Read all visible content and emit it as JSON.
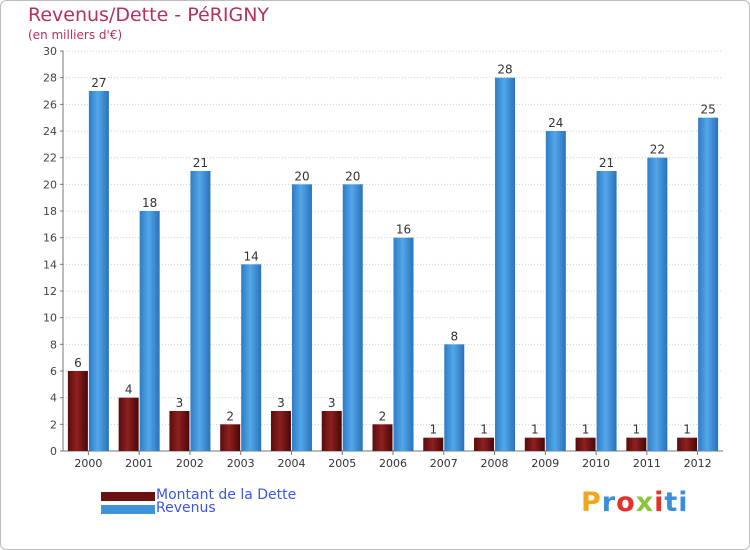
{
  "chart_data": {
    "type": "bar",
    "title": "Revenus/Dette - PéRIGNY",
    "subtitle": "(en milliers d'€)",
    "categories": [
      "2000",
      "2001",
      "2002",
      "2003",
      "2004",
      "2005",
      "2006",
      "2007",
      "2008",
      "2009",
      "2010",
      "2011",
      "2012"
    ],
    "series": [
      {
        "name": "Montant de la Dette",
        "color": "#7a1515",
        "values": [
          6,
          4,
          3,
          2,
          3,
          3,
          2,
          1,
          1,
          1,
          1,
          1,
          1
        ]
      },
      {
        "name": "Revenus",
        "color": "#3d94db",
        "values": [
          27,
          18,
          21,
          14,
          20,
          20,
          16,
          8,
          28,
          24,
          21,
          22,
          25
        ]
      }
    ],
    "yticks": [
      "0",
      "2",
      "4",
      "6",
      "8",
      "10",
      "12",
      "14",
      "16",
      "18",
      "20",
      "22",
      "24",
      "26",
      "28",
      "30"
    ],
    "ylim": [
      0,
      30
    ],
    "grid": true,
    "legend": "bottom-left"
  },
  "logo": {
    "l1": "P",
    "l2": "r",
    "l3": "o",
    "l4": "x",
    "l5": "i",
    "l6": "ti"
  }
}
